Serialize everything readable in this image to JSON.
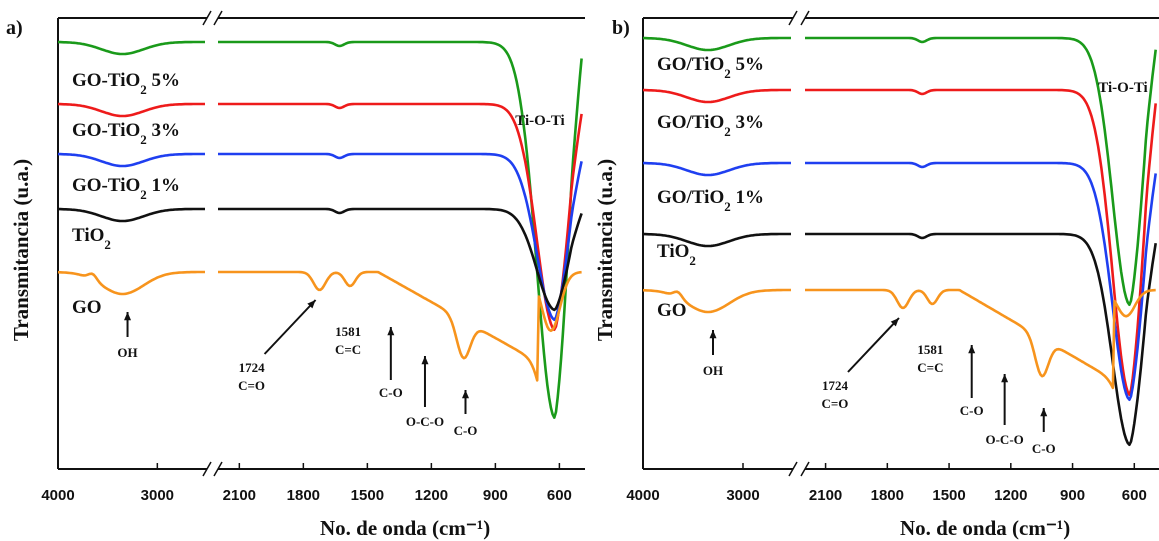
{
  "chart_data": [
    {
      "panel_label": "a)",
      "type": "line",
      "xlabel": "No. de onda (cm⁻¹)",
      "ylabel": "Transmitancia  (u.a.)",
      "x_tick_labels_left": [
        "4000",
        "3000"
      ],
      "x_tick_labels_right": [
        "2100",
        "1800",
        "1500",
        "1200",
        "900",
        "600"
      ],
      "x_ticks_left": [
        4000,
        3000
      ],
      "x_ticks_right": [
        2100,
        1800,
        1500,
        1200,
        900,
        600
      ],
      "axis_break": true,
      "series": [
        {
          "name": "GO-TiO₂ 5%",
          "color": "#1a9a1a",
          "name_parts": [
            "GO-TiO",
            "2",
            " 5%"
          ]
        },
        {
          "name": "GO-TiO₂ 3%",
          "color": "#ee1b1b",
          "name_parts": [
            "GO-TiO",
            "2",
            " 3%"
          ]
        },
        {
          "name": "GO-TiO₂ 1%",
          "color": "#1f3ff0",
          "name_parts": [
            "GO-TiO",
            "2",
            " 1%"
          ]
        },
        {
          "name": "TiO₂",
          "color": "#111111",
          "name_parts": [
            "TiO",
            "2",
            ""
          ]
        },
        {
          "name": "GO",
          "color": "#f7941d",
          "name_parts": [
            "GO",
            "",
            ""
          ]
        }
      ],
      "annotations": [
        "OH",
        "1724",
        "C=O",
        "1581",
        "C=C",
        "C-O",
        "O-C-O",
        "C-O",
        "Ti-O-Ti"
      ]
    },
    {
      "panel_label": "b)",
      "type": "line",
      "xlabel": "No. de onda (cm⁻¹)",
      "ylabel": "Transmitancia  (u.a.)",
      "x_tick_labels_left": [
        "4000",
        "3000"
      ],
      "x_tick_labels_right": [
        "2100",
        "1800",
        "1500",
        "1200",
        "900",
        "600"
      ],
      "x_ticks_left": [
        4000,
        3000
      ],
      "x_ticks_right": [
        2100,
        1800,
        1500,
        1200,
        900,
        600
      ],
      "axis_break": true,
      "series": [
        {
          "name": "GO/TiO₂ 5%",
          "color": "#1a9a1a",
          "name_parts": [
            "GO/TiO",
            "2",
            " 5%"
          ]
        },
        {
          "name": "GO/TiO₂ 3%",
          "color": "#ee1b1b",
          "name_parts": [
            "GO/TiO",
            "2",
            " 3%"
          ]
        },
        {
          "name": "GO/TiO₂ 1%",
          "color": "#1f3ff0",
          "name_parts": [
            "GO/TiO",
            "2",
            " 1%"
          ]
        },
        {
          "name": "TiO₂",
          "color": "#111111",
          "name_parts": [
            "TiO",
            "2",
            ""
          ]
        },
        {
          "name": "GO",
          "color": "#f7941d",
          "name_parts": [
            "GO",
            "",
            ""
          ]
        }
      ],
      "annotations": [
        "OH",
        "1724",
        "C=O",
        "1581",
        "C=C",
        "C-O",
        "O-C-O",
        "C-O",
        "Ti-O-Ti"
      ]
    }
  ]
}
